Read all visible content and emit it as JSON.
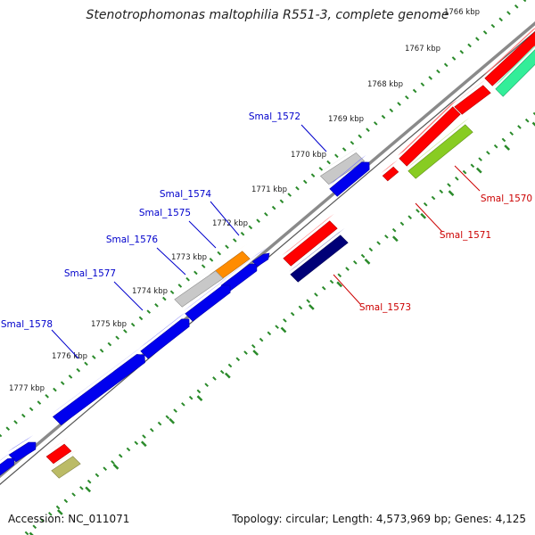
{
  "title": "Stenotrophomonas maltophilia R551-3, complete genome",
  "footer": {
    "accession": "Accession: NC_011071",
    "summary": "Topology: circular; Length: 4,573,969 bp; Genes: 4,125"
  },
  "colors": {
    "backbone": "#8a8a8a",
    "ticks": "#2a8a2a",
    "forward_label": "#0000cc",
    "reverse_label": "#cc0000"
  },
  "scale_labels": [
    "1766 kbp",
    "1767 kbp",
    "1768 kbp",
    "1769 kbp",
    "1770 kbp",
    "1771 kbp",
    "1772 kbp",
    "1773 kbp",
    "1774 kbp",
    "1775 kbp",
    "1776 kbp",
    "1777 kbp"
  ],
  "features": [
    {
      "label": "Smal_1570",
      "strand": "reverse",
      "color": "#ff0000"
    },
    {
      "label": "Smal_1571",
      "strand": "reverse",
      "color": "#ff0000"
    },
    {
      "label": "Smal_1572",
      "strand": "forward",
      "color": "#0000ee"
    },
    {
      "label": "Smal_1573",
      "strand": "reverse",
      "color": "#ff0000"
    },
    {
      "label": "Smal_1574",
      "strand": "forward",
      "color": "#ff8c00"
    },
    {
      "label": "Smal_1575",
      "strand": "forward",
      "color": "#0000ee"
    },
    {
      "label": "Smal_1576",
      "strand": "forward",
      "color": "#0000ee"
    },
    {
      "label": "Smal_1577",
      "strand": "forward",
      "color": "#0000ee"
    },
    {
      "label": "Smal_1578",
      "strand": "forward",
      "color": "#0000ee"
    }
  ]
}
